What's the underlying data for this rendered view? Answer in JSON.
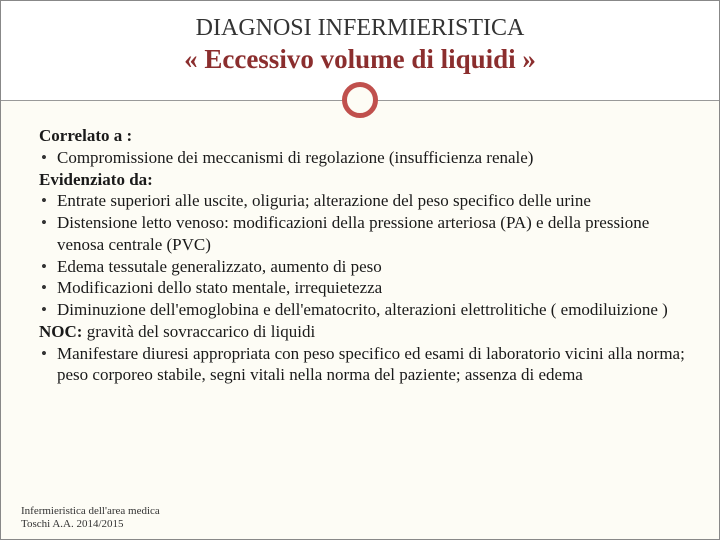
{
  "title": {
    "line1": "DIAGNOSI INFERMIERISTICA",
    "line2": "« Eccessivo volume di liquidi »"
  },
  "sections": {
    "correlato_label": "Correlato a :",
    "correlato_items": [
      "Compromissione dei meccanismi di regolazione (insufficienza renale)"
    ],
    "evidenziato_label": "Evidenziato da:",
    "evidenziato_items": [
      "Entrate superiori alle uscite, oliguria; alterazione del peso specifico delle urine",
      "Distensione letto venoso: modificazioni della pressione arteriosa (PA) e della pressione venosa centrale (PVC)",
      "Edema tessutale generalizzato, aumento di peso",
      "Modificazioni dello stato mentale, irrequietezza",
      "Diminuzione dell'emoglobina e dell'ematocrito, alterazioni elettrolitiche ( emodiluizione )"
    ],
    "noc_label": "NOC:",
    "noc_text": " gravità del sovraccarico di liquidi",
    "noc_items": [
      "Manifestare diuresi appropriata con peso specifico ed esami di laboratorio vicini alla norma; peso corporeo stabile, segni vitali nella norma del paziente; assenza di edema"
    ]
  },
  "footer": {
    "line1": "Infermieristica dell'area medica",
    "line2": "Toschi A.A. 2014/2015"
  },
  "styling": {
    "accent_color": "#c0504d",
    "title2_color": "#8b2e2e",
    "background": "#fdfcf5",
    "header_bg": "#ffffff",
    "text_color": "#1a1a1a",
    "title_fontsize": 24,
    "subtitle_fontsize": 27,
    "body_fontsize": 17,
    "footer_fontsize": 11
  }
}
